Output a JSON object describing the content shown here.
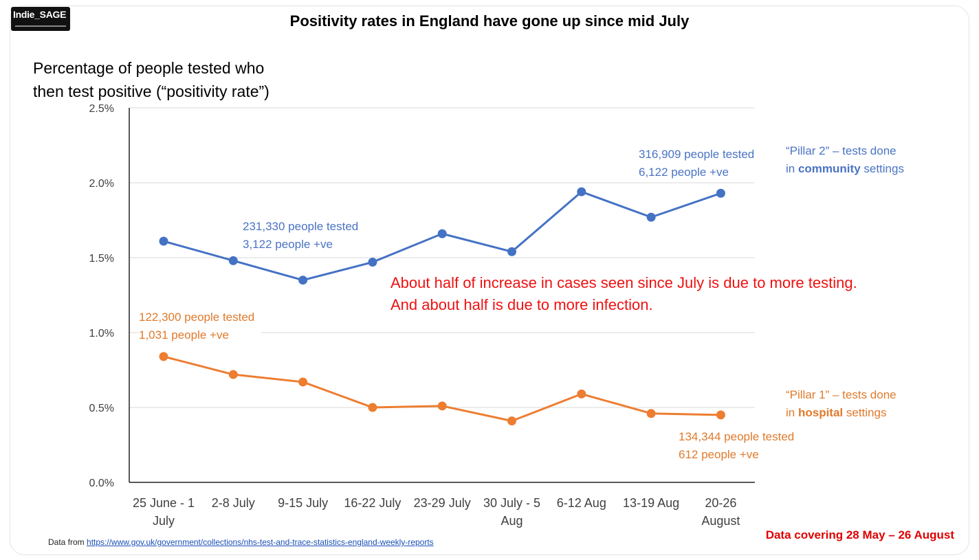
{
  "logo": {
    "text": "Indie_SAGE"
  },
  "title": "Positivity rates in England have gone up since mid July",
  "ytitle": [
    "Percentage of people tested who",
    "then test positive (“positivity rate”)"
  ],
  "annotations": {
    "pillar2_first": [
      "231,330 people tested",
      "3,122 people +ve"
    ],
    "pillar2_last": [
      "316,909 people tested",
      "6,122 people +ve"
    ],
    "pillar1_first": [
      "122,300 people tested",
      "1,031 people +ve"
    ],
    "pillar1_last": [
      "134,344 people tested",
      "612 people +ve"
    ],
    "pillar2_label": {
      "line1": "“Pillar 2” – tests done",
      "pre": "in ",
      "bold": "community",
      "post": " settings"
    },
    "pillar1_label": {
      "line1": "“Pillar 1” – tests done",
      "pre": "in ",
      "bold": "hospital",
      "post": " settings"
    },
    "note": [
      "About half of increase in cases seen since July is due to more testing.",
      "And about half is due to more infection."
    ]
  },
  "source": {
    "prefix": "Data from ",
    "url": "https://www.gov.uk/government/collections/nhs-test-and-trace-statistics-england-weekly-reports"
  },
  "covering": "Data covering 28 May – 26 August",
  "chart_data": {
    "type": "line",
    "categories": [
      [
        "25 June - 1",
        "July"
      ],
      [
        "2-8 July"
      ],
      [
        "9-15 July"
      ],
      [
        "16-22 July"
      ],
      [
        "23-29 July"
      ],
      [
        "30 July - 5",
        "Aug"
      ],
      [
        "6-12 Aug"
      ],
      [
        "13-19 Aug"
      ],
      [
        "20-26",
        "August"
      ]
    ],
    "series": [
      {
        "name": "Pillar 2",
        "color": "#4472c4",
        "values": [
          1.61,
          1.48,
          1.35,
          1.47,
          1.66,
          1.54,
          1.94,
          1.77,
          1.93
        ]
      },
      {
        "name": "Pillar 1",
        "color": "#ed7d31",
        "values": [
          0.84,
          0.72,
          0.67,
          0.5,
          0.51,
          0.41,
          0.59,
          0.46,
          0.45
        ]
      }
    ],
    "yticks": [
      "0.0%",
      "0.5%",
      "1.0%",
      "1.5%",
      "2.0%",
      "2.5%"
    ],
    "ylim": [
      0,
      2.5
    ],
    "grid": true
  }
}
